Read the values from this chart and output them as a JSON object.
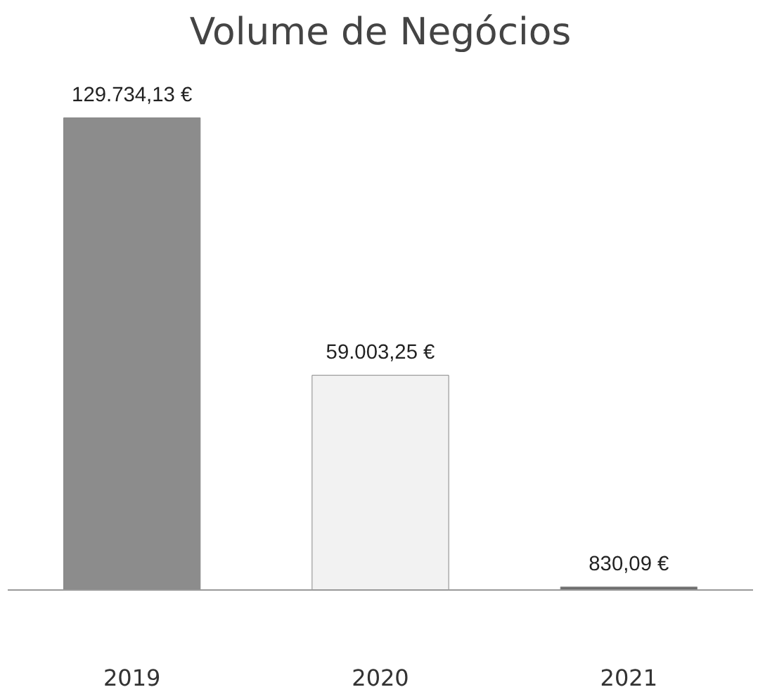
{
  "chart_data": {
    "type": "bar",
    "title": "Volume de Negócios",
    "categories": [
      "2019",
      "2020",
      "2021"
    ],
    "values": [
      129734.13,
      59003.25,
      830.09
    ],
    "colors": [
      "#8c8c8c",
      "#f2f2f2",
      "#6e6e6e"
    ],
    "value_labels": [
      "129.734,13 €",
      "59.003,25 €",
      "830,09 €"
    ],
    "grid": false
  }
}
